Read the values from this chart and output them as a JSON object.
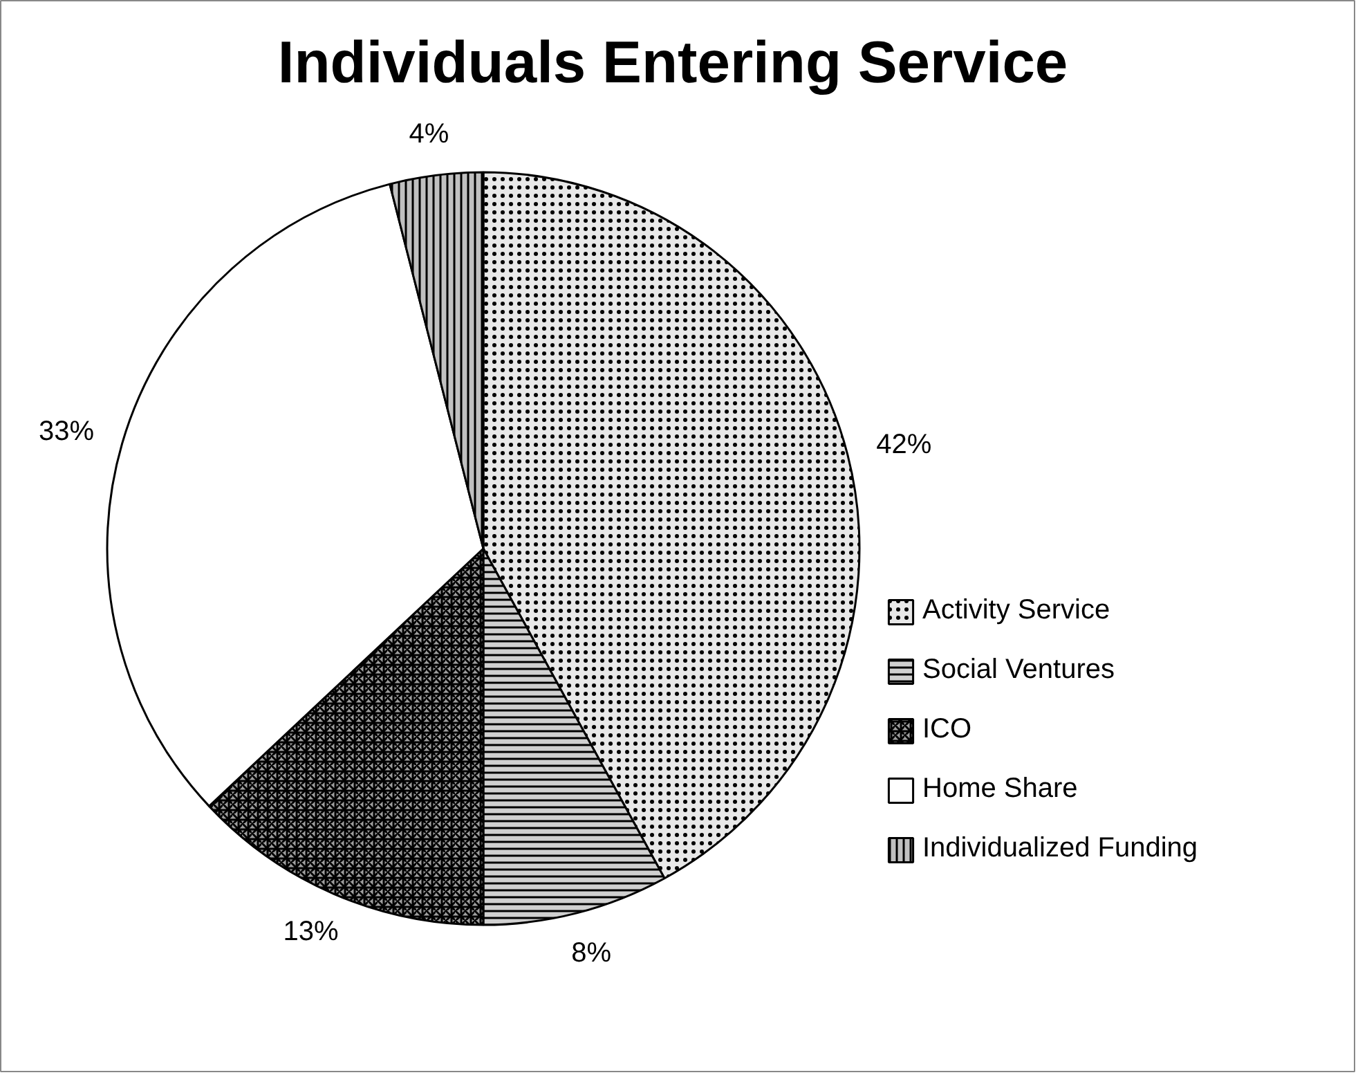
{
  "chart_data": {
    "type": "pie",
    "title": "Individuals Entering Service",
    "categories": [
      "Activity Service",
      "Social Ventures",
      "ICO",
      "Home Share",
      "Individualized Funding"
    ],
    "values": [
      42,
      8,
      13,
      33,
      4
    ],
    "value_labels": [
      "42%",
      "8%",
      "13%",
      "33%",
      "4%"
    ],
    "colors": [
      "#e8e8e8",
      "#d0d0d0",
      "#a0a0a0",
      "#ffffff",
      "#c0c0c0"
    ],
    "legend": "right"
  }
}
